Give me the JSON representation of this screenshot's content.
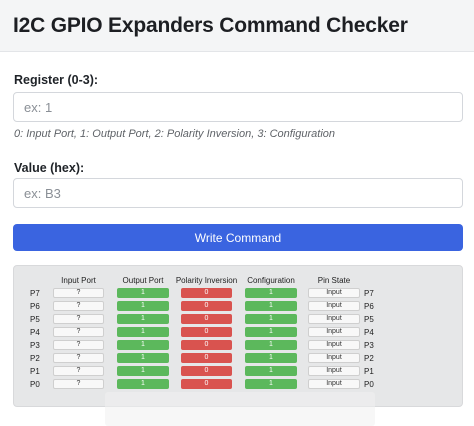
{
  "header": {
    "title": "I2C GPIO Expanders Command Checker"
  },
  "register": {
    "label": "Register (0-3):",
    "value": "",
    "placeholder": "ex: 1",
    "hint": "0: Input Port, 1: Output Port, 2: Polarity Inversion, 3: Configuration"
  },
  "value_field": {
    "label": "Value (hex):",
    "value": "",
    "placeholder": "ex: B3"
  },
  "write_button": {
    "label": "Write Command"
  },
  "table": {
    "columns": [
      "Input Port",
      "Output Port",
      "Polarity Inversion",
      "Configuration",
      "Pin State"
    ],
    "colors": {
      "output": "#5cb85c",
      "polarity": "#d9534f",
      "configuration": "#5cb85c"
    },
    "rows": [
      {
        "pin": "P7",
        "input": "?",
        "output": "1",
        "polarity": "0",
        "configuration": "1",
        "state": "Input",
        "pin_right": "P7"
      },
      {
        "pin": "P6",
        "input": "?",
        "output": "1",
        "polarity": "0",
        "configuration": "1",
        "state": "Input",
        "pin_right": "P6"
      },
      {
        "pin": "P5",
        "input": "?",
        "output": "1",
        "polarity": "0",
        "configuration": "1",
        "state": "Input",
        "pin_right": "P5"
      },
      {
        "pin": "P4",
        "input": "?",
        "output": "1",
        "polarity": "0",
        "configuration": "1",
        "state": "Input",
        "pin_right": "P4"
      },
      {
        "pin": "P3",
        "input": "?",
        "output": "1",
        "polarity": "0",
        "configuration": "1",
        "state": "Input",
        "pin_right": "P3"
      },
      {
        "pin": "P2",
        "input": "?",
        "output": "1",
        "polarity": "0",
        "configuration": "1",
        "state": "Input",
        "pin_right": "P2"
      },
      {
        "pin": "P1",
        "input": "?",
        "output": "1",
        "polarity": "0",
        "configuration": "1",
        "state": "Input",
        "pin_right": "P1"
      },
      {
        "pin": "P0",
        "input": "?",
        "output": "1",
        "polarity": "0",
        "configuration": "1",
        "state": "Input",
        "pin_right": "P0"
      }
    ]
  }
}
